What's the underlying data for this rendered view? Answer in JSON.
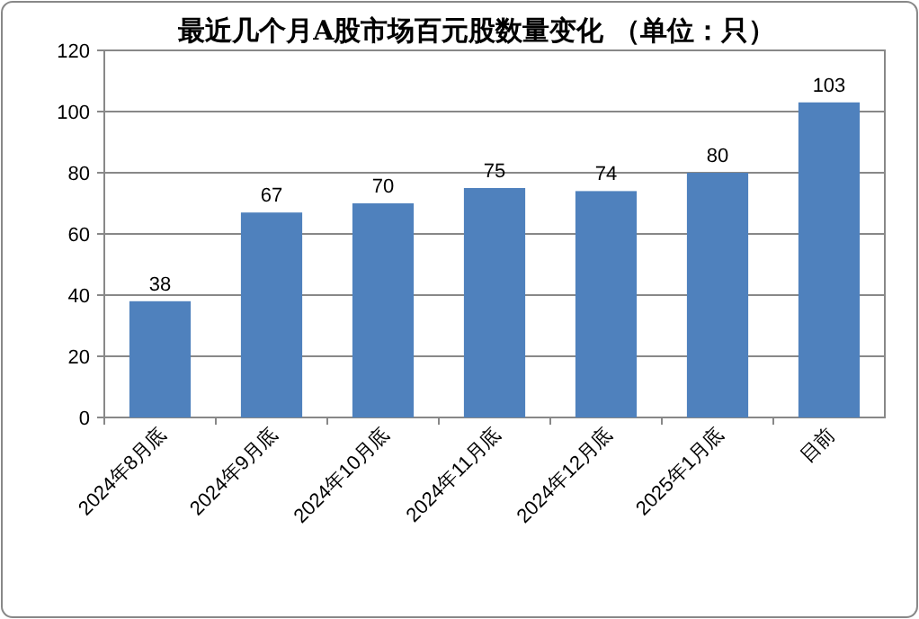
{
  "chart_data": {
    "type": "bar",
    "title": "最近几个月A股市场百元股数量变化 （单位：只）",
    "categories": [
      "2024年8月底",
      "2024年9月底",
      "2024年10月底",
      "2024年11月底",
      "2024年12月底",
      "2025年1月底",
      "目前"
    ],
    "values": [
      38,
      67,
      70,
      75,
      74,
      80,
      103
    ],
    "color": "#4f81bd",
    "ylim": [
      0,
      120
    ],
    "yticks": [
      0,
      20,
      40,
      60,
      80,
      100,
      120
    ],
    "grid": "y",
    "data_labels": true
  }
}
